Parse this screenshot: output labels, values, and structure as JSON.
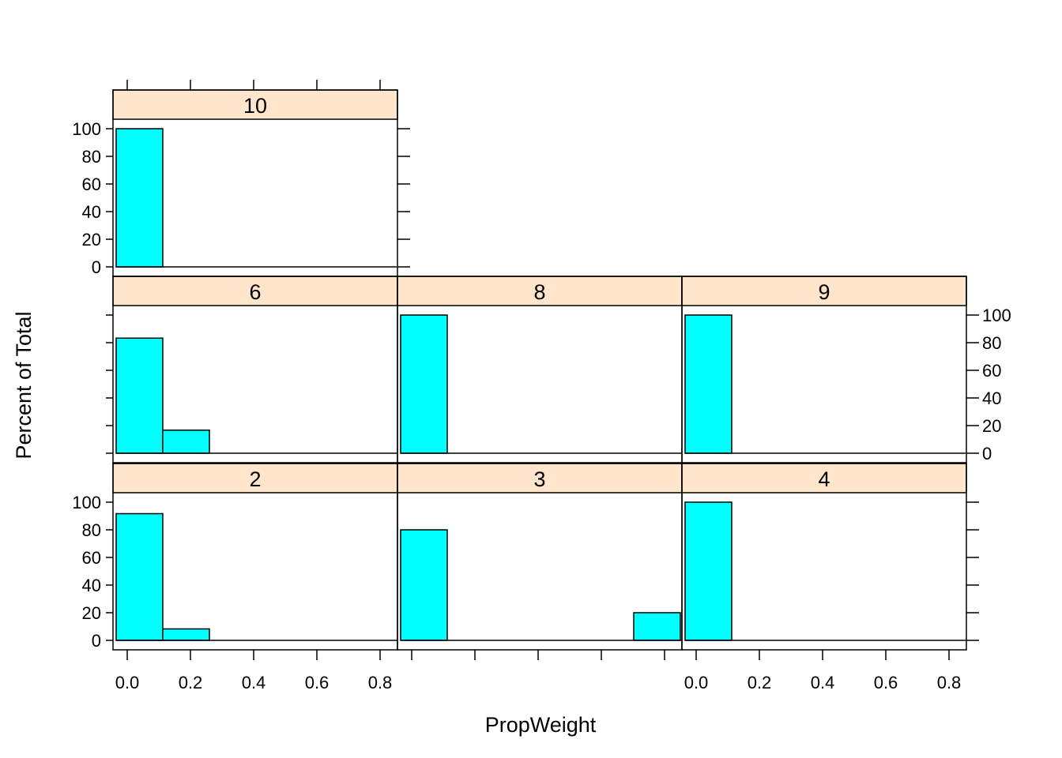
{
  "chart_data": {
    "type": "bar",
    "kind": "histogram-trellis",
    "xlabel": "PropWeight",
    "ylabel": "Percent of Total",
    "xlim": [
      -0.045,
      0.855
    ],
    "ylim": [
      0,
      100
    ],
    "x_ticks": [
      "0.0",
      "0.2",
      "0.4",
      "0.6",
      "0.8"
    ],
    "y_ticks": [
      "0",
      "20",
      "40",
      "60",
      "80",
      "100"
    ],
    "bin_width": 0.1475,
    "colors": {
      "bar": "#00ffff",
      "strip": "#ffe5cc",
      "frame": "#000000"
    },
    "panels": [
      {
        "label": "2",
        "bins": [
          {
            "start": -0.035,
            "percent": 91.7
          },
          {
            "start": 0.1125,
            "percent": 8.3
          }
        ]
      },
      {
        "label": "3",
        "bins": [
          {
            "start": -0.035,
            "percent": 80
          },
          {
            "start": 0.7025,
            "percent": 20
          }
        ]
      },
      {
        "label": "4",
        "bins": [
          {
            "start": -0.035,
            "percent": 100
          }
        ]
      },
      {
        "label": "6",
        "bins": [
          {
            "start": -0.035,
            "percent": 83.3
          },
          {
            "start": 0.1125,
            "percent": 16.7
          }
        ]
      },
      {
        "label": "8",
        "bins": [
          {
            "start": -0.035,
            "percent": 100
          }
        ]
      },
      {
        "label": "9",
        "bins": [
          {
            "start": -0.035,
            "percent": 100
          }
        ]
      },
      {
        "label": "10",
        "bins": [
          {
            "start": -0.035,
            "percent": 100
          }
        ]
      }
    ]
  }
}
